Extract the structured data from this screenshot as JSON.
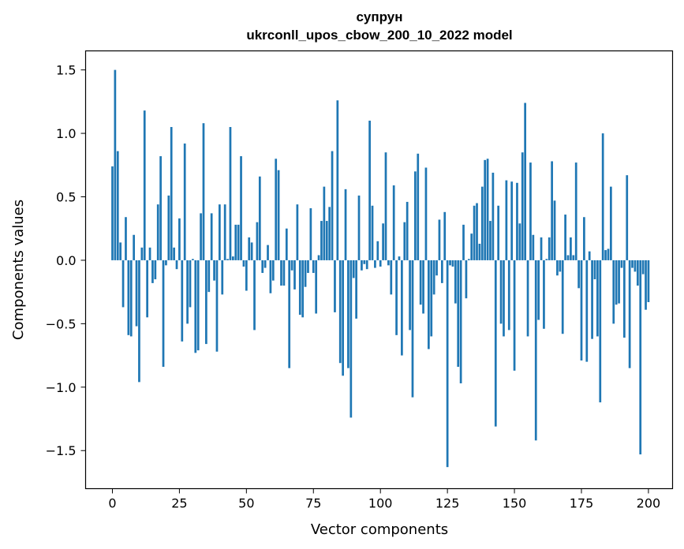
{
  "chart_data": {
    "type": "bar",
    "title": "супрун",
    "subtitle": "ukrconll_upos_cbow_200_10_2022 model",
    "xlabel": "Vector components",
    "ylabel": "Components values",
    "xlim": [
      -10,
      209
    ],
    "ylim": [
      -1.8,
      1.65
    ],
    "xticks": [
      0,
      25,
      50,
      75,
      100,
      125,
      150,
      175,
      200
    ],
    "yticks": [
      -1.5,
      -1.0,
      -0.5,
      0.0,
      0.5,
      1.0,
      1.5
    ],
    "ytick_labels": [
      "−1.5",
      "−1.0",
      "−0.5",
      "0.0",
      "0.5",
      "1.0",
      "1.5"
    ],
    "grid": false,
    "color": "#1f77b4",
    "values": [
      0.74,
      1.5,
      0.86,
      0.14,
      -0.37,
      0.34,
      -0.59,
      -0.6,
      0.2,
      -0.52,
      -0.96,
      0.1,
      1.18,
      -0.45,
      0.1,
      -0.18,
      -0.15,
      0.44,
      0.82,
      -0.84,
      -0.04,
      0.51,
      1.05,
      0.1,
      -0.07,
      0.33,
      -0.64,
      0.92,
      -0.5,
      -0.37,
      0.01,
      -0.73,
      -0.71,
      0.37,
      1.08,
      -0.66,
      -0.25,
      0.37,
      -0.16,
      -0.72,
      0.44,
      -0.27,
      0.44,
      0.01,
      1.05,
      0.03,
      0.28,
      0.28,
      0.82,
      -0.05,
      -0.24,
      0.18,
      0.14,
      -0.55,
      0.3,
      0.66,
      -0.1,
      -0.06,
      0.12,
      -0.26,
      -0.16,
      0.8,
      0.71,
      -0.2,
      -0.2,
      0.25,
      -0.85,
      -0.08,
      -0.23,
      0.44,
      -0.43,
      -0.45,
      -0.21,
      -0.1,
      0.41,
      -0.1,
      -0.42,
      0.04,
      0.31,
      0.58,
      0.31,
      0.42,
      0.86,
      -0.41,
      1.26,
      -0.81,
      -0.91,
      0.56,
      -0.85,
      -1.24,
      -0.14,
      -0.46,
      0.51,
      -0.08,
      -0.03,
      -0.07,
      1.1,
      0.43,
      -0.06,
      0.15,
      -0.05,
      0.29,
      0.85,
      -0.04,
      -0.27,
      0.59,
      -0.59,
      0.03,
      -0.75,
      0.3,
      0.46,
      -0.55,
      -1.08,
      0.7,
      0.84,
      -0.35,
      -0.42,
      0.73,
      -0.7,
      -0.6,
      -0.27,
      -0.12,
      0.32,
      -0.18,
      0.38,
      -1.63,
      -0.04,
      -0.05,
      -0.34,
      -0.84,
      -0.97,
      0.28,
      -0.3,
      0.01,
      0.21,
      0.43,
      0.45,
      0.13,
      0.58,
      0.79,
      0.8,
      0.31,
      0.69,
      -1.31,
      0.43,
      -0.5,
      -0.6,
      0.63,
      -0.55,
      0.62,
      -0.87,
      0.61,
      0.29,
      0.85,
      1.24,
      -0.6,
      0.77,
      0.2,
      -1.42,
      -0.47,
      0.18,
      -0.54,
      0.01,
      0.18,
      0.78,
      0.47,
      -0.12,
      -0.09,
      -0.58,
      0.36,
      0.04,
      0.18,
      0.04,
      0.77,
      -0.22,
      -0.79,
      0.34,
      -0.8,
      0.07,
      -0.62,
      -0.15,
      -0.6,
      -1.12,
      1.0,
      0.08,
      0.09,
      0.58,
      -0.5,
      -0.35,
      -0.34,
      -0.06,
      -0.61,
      0.67,
      -0.85,
      -0.06,
      -0.09,
      -0.2,
      -1.53,
      -0.11,
      -0.39,
      -0.33
    ]
  }
}
